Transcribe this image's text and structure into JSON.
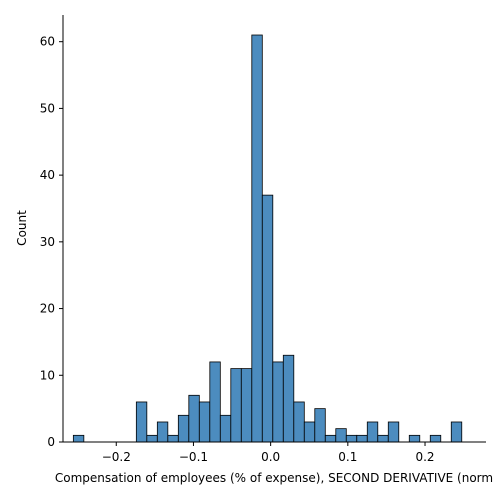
{
  "chart_data": {
    "type": "bar",
    "subtype": "histogram",
    "title": "",
    "xlabel": "Compensation of employees (% of expense), SECOND DERIVATIVE (norm",
    "ylabel": "Count",
    "xlim": [
      -0.269,
      0.279
    ],
    "ylim": [
      0,
      64
    ],
    "x_ticks": [
      -0.2,
      -0.1,
      0.0,
      0.1,
      0.2
    ],
    "x_tick_labels": [
      "−0.2",
      "−0.1",
      "0.0",
      "0.1",
      "0.2"
    ],
    "y_ticks": [
      0,
      10,
      20,
      30,
      40,
      50,
      60
    ],
    "y_tick_labels": [
      "0",
      "10",
      "20",
      "30",
      "40",
      "50",
      "60"
    ],
    "bin_width": 0.0136,
    "bin_edges_start": -0.2556,
    "counts": [
      1,
      0,
      0,
      0,
      0,
      0,
      6,
      1,
      3,
      1,
      4,
      7,
      6,
      12,
      4,
      11,
      11,
      61,
      37,
      12,
      13,
      6,
      3,
      5,
      1,
      2,
      1,
      1,
      3,
      1,
      3,
      0,
      1,
      0,
      1,
      0,
      3
    ],
    "bar_color": "#4c8cbf",
    "grid": false,
    "legend": "none"
  }
}
